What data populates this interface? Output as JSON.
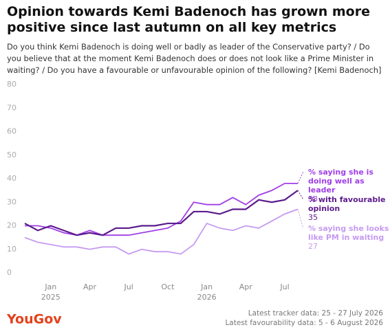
{
  "chart_data": {
    "type": "line",
    "title": "Opinion towards Kemi Badenoch has grown more positive since last autumn on all key metrics",
    "subtitle": "Do you think Kemi Badenoch is doing well or badly as leader of the Conservative party? / Do you believe that at the moment Kemi Badenoch does or does not look like a Prime Minister in waiting? / Do you have a favourable or unfavourable opinion of the following? [Kemi Badenoch]",
    "x": [
      "Nov 2024",
      "Dec 2024",
      "Jan 2025",
      "Feb 2025",
      "Mar 2025",
      "Apr 2025",
      "May 2025",
      "Jun 2025",
      "Jul 2025",
      "Aug 2025",
      "Sep 2025",
      "Oct 2025",
      "Nov 2025",
      "Dec 2025",
      "Jan 2026",
      "Feb 2026",
      "Mar 2026",
      "Apr 2026",
      "May 2026",
      "Jun 2026",
      "Jul 2026",
      "Aug 2026"
    ],
    "xticks": [
      {
        "value": "Jan 2025",
        "label": "Jan"
      },
      {
        "value": "Apr 2025",
        "label": "Apr"
      },
      {
        "value": "Jul 2025",
        "label": "Jul"
      },
      {
        "value": "Oct 2025",
        "label": "Oct"
      },
      {
        "value": "Jan 2026",
        "label": "Jan"
      },
      {
        "value": "Apr 2026",
        "label": "Apr"
      },
      {
        "value": "Jul 2026",
        "label": "Jul"
      }
    ],
    "x_year_labels": [
      {
        "value": "Jan 2025",
        "label": "2025"
      },
      {
        "value": "Jan 2026",
        "label": "2026"
      }
    ],
    "ylim": [
      0,
      80
    ],
    "yticks": [
      0,
      10,
      20,
      30,
      40,
      50,
      60,
      70,
      80
    ],
    "grid": false,
    "series": [
      {
        "name": "% saying she is doing well as leader",
        "color": "#a03ee6",
        "values": [
          20,
          20,
          19,
          17,
          16,
          18,
          16,
          16,
          16,
          17,
          18,
          19,
          22,
          30,
          29,
          29,
          32,
          29,
          33,
          35,
          38,
          38
        ]
      },
      {
        "name": "% with favourable opinion",
        "color": "#5b1a8c",
        "values": [
          21,
          18,
          20,
          18,
          16,
          17,
          16,
          19,
          19,
          20,
          20,
          21,
          21,
          26,
          26,
          25,
          27,
          27,
          31,
          30,
          31,
          35
        ]
      },
      {
        "name": "% saying she looks like PM in waiting",
        "color": "#c69af2",
        "values": [
          15,
          13,
          12,
          11,
          11,
          10,
          11,
          11,
          8,
          10,
          9,
          9,
          8,
          12,
          21,
          19,
          18,
          20,
          19,
          22,
          25,
          27
        ]
      }
    ],
    "logo": "YouGov",
    "footnotes": [
      "Latest tracker data: 25 - 27 July 2026",
      "Latest favourability data: 5 - 6 August 2026"
    ]
  }
}
